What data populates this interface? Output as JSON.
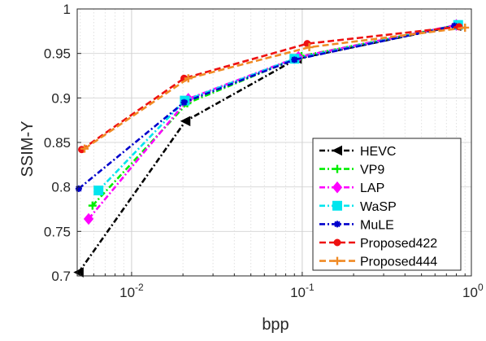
{
  "chart_data": {
    "type": "line",
    "title": "",
    "xlabel": "bpp",
    "ylabel": "SSIM-Y",
    "xscale": "log",
    "xlim": [
      0.0048,
      0.98
    ],
    "ylim": [
      0.7,
      1.0
    ],
    "grid": true,
    "legend_position": "bottom-right",
    "x_ticks": [
      {
        "value": 0.01,
        "base": "10",
        "exp": "-2"
      },
      {
        "value": 0.1,
        "base": "10",
        "exp": "-1"
      },
      {
        "value": 1,
        "base": "10",
        "exp": "0"
      }
    ],
    "y_ticks": [
      0.7,
      0.75,
      0.8,
      0.85,
      0.9,
      0.95,
      1
    ],
    "y_tick_labels": [
      "0.7",
      "0.75",
      "0.8",
      "0.85",
      "0.9",
      "0.95",
      "1"
    ],
    "series": [
      {
        "name": "HEVC",
        "color": "#000000",
        "marker": "triangle-left",
        "x": [
          0.0049,
          0.0207,
          0.093,
          0.8
        ],
        "y": [
          0.704,
          0.874,
          0.944,
          0.981
        ]
      },
      {
        "name": "VP9",
        "color": "#00ee00",
        "marker": "plus",
        "x": [
          0.0059,
          0.0212,
          0.099,
          0.81
        ],
        "y": [
          0.779,
          0.894,
          0.947,
          0.982
        ]
      },
      {
        "name": "LAP",
        "color": "#ff00ff",
        "marker": "diamond",
        "x": [
          0.0056,
          0.0215,
          0.095,
          0.8
        ],
        "y": [
          0.764,
          0.899,
          0.946,
          0.982
        ]
      },
      {
        "name": "WaSP",
        "color": "#00e5ee",
        "marker": "square",
        "x": [
          0.0064,
          0.0205,
          0.09,
          0.82
        ],
        "y": [
          0.796,
          0.897,
          0.944,
          0.982
        ]
      },
      {
        "name": "MuLE",
        "color": "#0000cc",
        "marker": "star",
        "x": [
          0.0049,
          0.0203,
          0.09,
          0.78
        ],
        "y": [
          0.798,
          0.895,
          0.943,
          0.981
        ]
      },
      {
        "name": "Proposed422",
        "color": "#ee1111",
        "marker": "circle",
        "x": [
          0.0051,
          0.0203,
          0.107,
          0.83
        ],
        "y": [
          0.842,
          0.922,
          0.961,
          0.98
        ]
      },
      {
        "name": "Proposed444",
        "color": "#f08a24",
        "marker": "plus",
        "x": [
          0.0053,
          0.0215,
          0.11,
          0.9
        ],
        "y": [
          0.843,
          0.922,
          0.957,
          0.979
        ]
      }
    ]
  }
}
